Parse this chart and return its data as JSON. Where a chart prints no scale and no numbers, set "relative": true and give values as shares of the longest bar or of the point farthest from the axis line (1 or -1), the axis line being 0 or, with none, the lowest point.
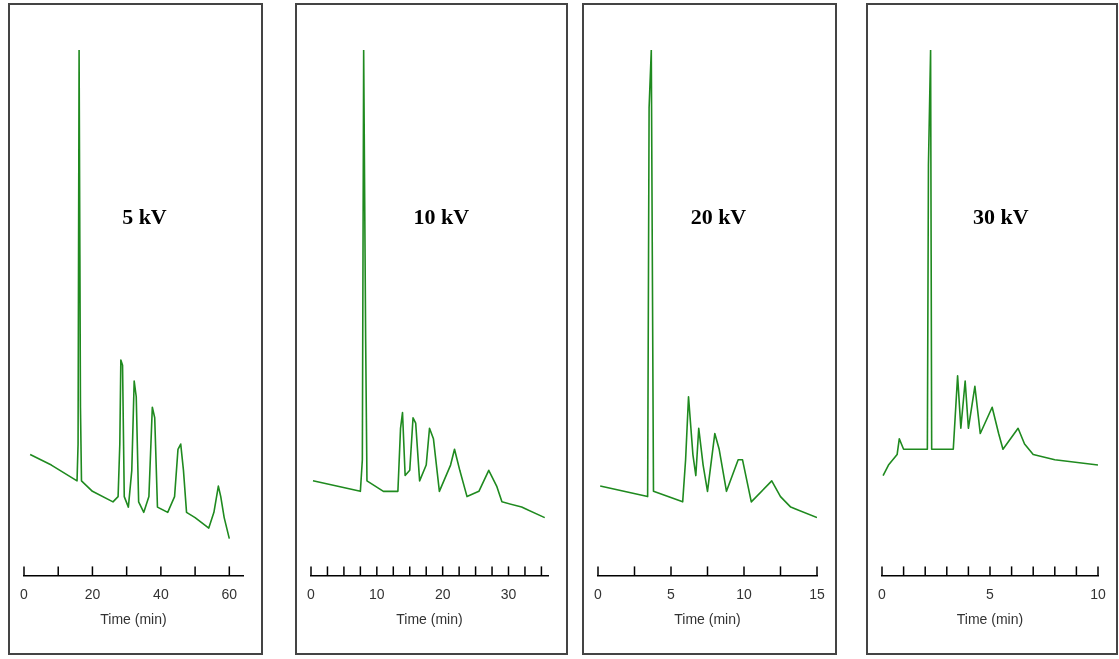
{
  "chart_data": [
    {
      "type": "line",
      "relative": true,
      "annotations": [
        "5 kV"
      ],
      "xlabel": "Time (min)",
      "xlim": [
        0,
        64
      ],
      "xticks": [
        0,
        {
          "value": 10,
          "label": null
        },
        20,
        {
          "value": 30,
          "label": null
        },
        40,
        {
          "value": 50,
          "label": null
        },
        60
      ],
      "series": [
        {
          "color": "#1f8a1f",
          "x": [
            1.8,
            8,
            15.5,
            15.8,
            16.1,
            16.5,
            16.8,
            20,
            26,
            27.5,
            28.0,
            28.3,
            28.8,
            29.3,
            30.5,
            31.5,
            32.2,
            32.8,
            33.5,
            35,
            36.5,
            37.5,
            38.2,
            39,
            42,
            44,
            45,
            45.8,
            46.6,
            47.5,
            50,
            54,
            55.5,
            56.8,
            57.5,
            58.5,
            60
          ],
          "values": [
            0.23,
            0.21,
            0.18,
            0.25,
            1,
            0.32,
            0.18,
            0.16,
            0.14,
            0.15,
            0.25,
            0.41,
            0.4,
            0.15,
            0.13,
            0.2,
            0.37,
            0.34,
            0.14,
            0.12,
            0.15,
            0.32,
            0.3,
            0.13,
            0.12,
            0.15,
            0.24,
            0.25,
            0.2,
            0.12,
            0.11,
            0.09,
            0.12,
            0.17,
            0.15,
            0.11,
            0.07
          ]
        }
      ]
    },
    {
      "type": "line",
      "relative": true,
      "annotations": [
        "10 kV"
      ],
      "xlabel": "Time (min)",
      "xlim": [
        0,
        36
      ],
      "xticks": [
        0,
        {
          "value": 2.5,
          "label": null
        },
        {
          "value": 5,
          "label": null
        },
        {
          "value": 7.5,
          "label": null
        },
        10,
        {
          "value": 12.5,
          "label": null
        },
        {
          "value": 15,
          "label": null
        },
        {
          "value": 17.5,
          "label": null
        },
        20,
        {
          "value": 22.5,
          "label": null
        },
        {
          "value": 25,
          "label": null
        },
        {
          "value": 27.5,
          "label": null
        },
        30,
        {
          "value": 32.5,
          "label": null
        },
        {
          "value": 35,
          "label": null
        }
      ],
      "series": [
        {
          "color": "#1f8a1f",
          "x": [
            0.3,
            7.5,
            7.8,
            8.0,
            8.3,
            8.5,
            11,
            13.2,
            13.6,
            13.9,
            14.3,
            15.0,
            15.5,
            15.9,
            16.5,
            17.5,
            18.0,
            18.6,
            19.5,
            21.2,
            21.8,
            22.6,
            23.7,
            25.5,
            27,
            28.2,
            29,
            32,
            35.5
          ],
          "values": [
            0.18,
            0.16,
            0.22,
            1,
            0.45,
            0.18,
            0.16,
            0.16,
            0.28,
            0.31,
            0.19,
            0.2,
            0.3,
            0.29,
            0.18,
            0.21,
            0.28,
            0.26,
            0.16,
            0.21,
            0.24,
            0.2,
            0.15,
            0.16,
            0.2,
            0.17,
            0.14,
            0.13,
            0.11
          ]
        }
      ]
    },
    {
      "type": "line",
      "relative": true,
      "annotations": [
        "20 kV"
      ],
      "xlabel": "Time (min)",
      "xlim": [
        0,
        15
      ],
      "xticks": [
        0,
        {
          "value": 2.5,
          "label": null
        },
        5,
        {
          "value": 7.5,
          "label": null
        },
        10,
        {
          "value": 12.5,
          "label": null
        },
        15
      ],
      "series": [
        {
          "color": "#1f8a1f",
          "x": [
            0.15,
            3.4,
            3.5,
            3.65,
            3.8,
            5.8,
            6.0,
            6.2,
            6.5,
            6.7,
            6.9,
            7.2,
            7.5,
            8.0,
            8.3,
            8.8,
            9.6,
            9.9,
            10.5,
            11.9,
            12.5,
            13.2,
            15
          ],
          "values": [
            0.17,
            0.15,
            0.89,
            1,
            0.16,
            0.14,
            0.22,
            0.34,
            0.23,
            0.19,
            0.28,
            0.21,
            0.16,
            0.27,
            0.24,
            0.16,
            0.22,
            0.22,
            0.14,
            0.18,
            0.15,
            0.13,
            0.11
          ]
        }
      ]
    },
    {
      "type": "line",
      "relative": true,
      "annotations": [
        "30 kV"
      ],
      "xlabel": "Time (min)",
      "xlim": [
        0,
        10
      ],
      "xticks": [
        0,
        {
          "value": 1,
          "label": null
        },
        {
          "value": 2,
          "label": null
        },
        {
          "value": 3,
          "label": null
        },
        {
          "value": 4,
          "label": null
        },
        5,
        {
          "value": 6,
          "label": null
        },
        {
          "value": 7,
          "label": null
        },
        {
          "value": 8,
          "label": null
        },
        {
          "value": 9,
          "label": null
        },
        10
      ],
      "series": [
        {
          "color": "#1f8a1f",
          "x": [
            0.05,
            0.3,
            0.7,
            0.8,
            1.0,
            1.5,
            2.1,
            2.15,
            2.25,
            2.3,
            3.3,
            3.5,
            3.65,
            3.85,
            4.0,
            4.3,
            4.55,
            5.1,
            5.4,
            5.6,
            6.3,
            6.6,
            7.0,
            8.0,
            10
          ],
          "values": [
            0.19,
            0.21,
            0.23,
            0.26,
            0.24,
            0.24,
            0.24,
            0.78,
            1,
            0.24,
            0.24,
            0.38,
            0.28,
            0.37,
            0.28,
            0.36,
            0.27,
            0.32,
            0.27,
            0.24,
            0.28,
            0.25,
            0.23,
            0.22,
            0.21
          ]
        }
      ]
    }
  ]
}
